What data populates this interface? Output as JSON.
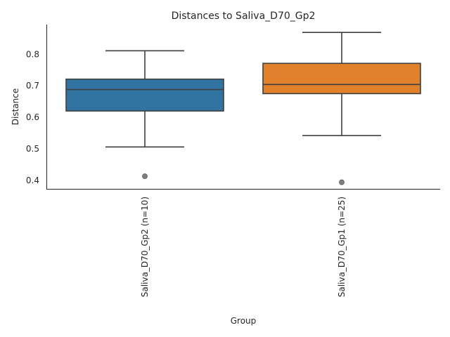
{
  "chart_data": {
    "type": "box",
    "title": "Distances to Saliva_D70_Gp2",
    "xlabel": "Group",
    "ylabel": "Distance",
    "ylim": [
      0.372,
      0.893
    ],
    "yticks": [
      0.4,
      0.5,
      0.6,
      0.7,
      0.8
    ],
    "ytick_labels": [
      "0.4",
      "0.5",
      "0.6",
      "0.7",
      "0.8"
    ],
    "grid": false,
    "categories": [
      "Saliva_D70_Gp2 (n=10)",
      "Saliva_D70_Gp1 (n=25)"
    ],
    "boxes": [
      {
        "label": "Saliva_D70_Gp2 (n=10)",
        "color": "#3274a1",
        "whisker_low": 0.505,
        "q1": 0.619,
        "median": 0.687,
        "q3": 0.72,
        "whisker_high": 0.81,
        "outliers": [
          0.412
        ]
      },
      {
        "label": "Saliva_D70_Gp1 (n=25)",
        "color": "#e1812c",
        "whisker_low": 0.541,
        "q1": 0.674,
        "median": 0.703,
        "q3": 0.77,
        "whisker_high": 0.868,
        "outliers": [
          0.393
        ]
      }
    ]
  }
}
